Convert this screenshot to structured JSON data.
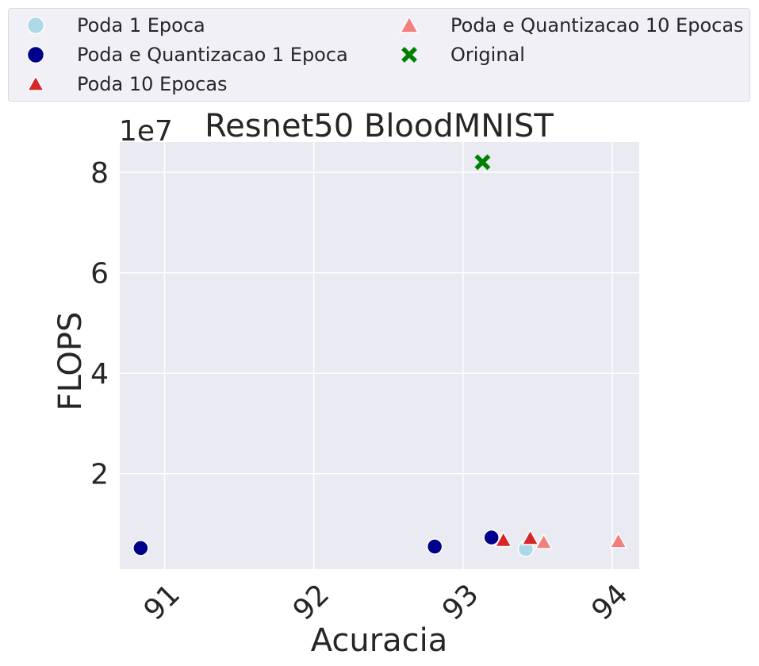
{
  "chart_data": {
    "type": "scatter",
    "title": "Resnet50 BloodMNIST",
    "xlabel": "Acuracia",
    "ylabel": "FLOPS",
    "y_offset_label": "1e7",
    "xlim": [
      90.7,
      94.18
    ],
    "ylim": [
      0.1,
      8.6
    ],
    "y_scale_factor": 10000000,
    "xticks": [
      91,
      92,
      93,
      94
    ],
    "xtick_labels": [
      "91",
      "92",
      "93",
      "94"
    ],
    "yticks": [
      2,
      4,
      6,
      8
    ],
    "ytick_labels": [
      "2",
      "4",
      "6",
      "8"
    ],
    "grid": true,
    "legend_position": "top, above plot, 2 columns",
    "series": [
      {
        "name": "Poda 1 Epoca",
        "marker": "circle",
        "color": "#add8e6",
        "points": [
          {
            "x": 93.42,
            "y": 0.5
          }
        ]
      },
      {
        "name": "Poda e Quantizacao 1 Epoca",
        "marker": "circle",
        "color": "#00008b",
        "points": [
          {
            "x": 90.84,
            "y": 0.52
          },
          {
            "x": 92.81,
            "y": 0.55
          },
          {
            "x": 93.19,
            "y": 0.73
          }
        ]
      },
      {
        "name": "Poda 10 Epocas",
        "marker": "triangle",
        "color": "#d62728",
        "points": [
          {
            "x": 93.27,
            "y": 0.66
          },
          {
            "x": 93.45,
            "y": 0.7
          }
        ]
      },
      {
        "name": "Poda e Quantizacao 10 Epocas",
        "marker": "triangle",
        "color": "#f08080",
        "points": [
          {
            "x": 93.54,
            "y": 0.62
          },
          {
            "x": 94.04,
            "y": 0.64
          }
        ]
      },
      {
        "name": "Original",
        "marker": "x",
        "color": "#008000",
        "points": [
          {
            "x": 93.13,
            "y": 8.2
          }
        ]
      }
    ]
  }
}
